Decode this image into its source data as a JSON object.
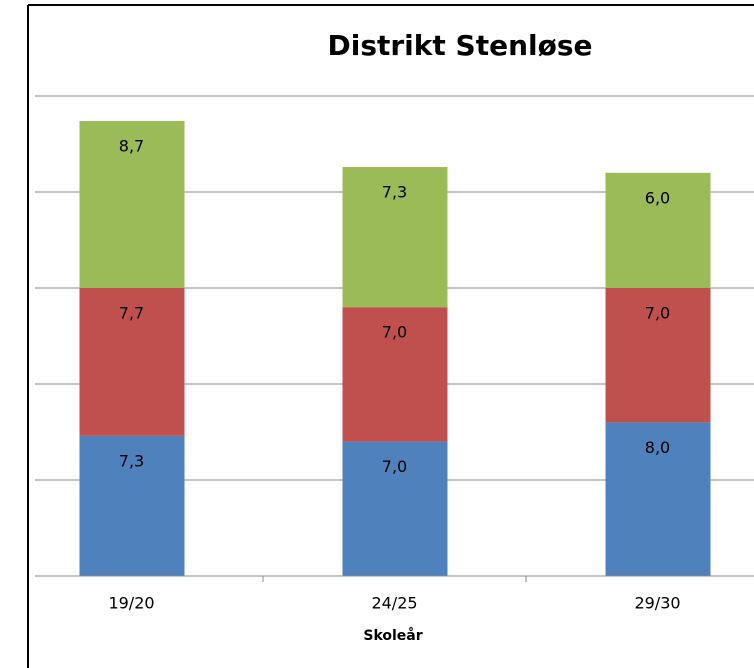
{
  "chart_data": {
    "type": "stacked_bar",
    "title": "Distrikt Stenløse",
    "x_label": "Skoleår",
    "categories": [
      "19/20",
      "24/25",
      "29/30"
    ],
    "series": [
      {
        "color": "#4f81bd",
        "values": [
          7.3,
          7.0,
          8.0
        ],
        "value_labels": [
          "7,3",
          "7,0",
          "8,0"
        ]
      },
      {
        "color": "#c0504d",
        "values": [
          7.7,
          7.0,
          7.0
        ],
        "value_labels": [
          "7,7",
          "7,0",
          "7,0"
        ]
      },
      {
        "color": "#9bbb59",
        "values": [
          8.7,
          7.3,
          6.0
        ],
        "value_labels": [
          "8,7",
          "7,3",
          "6,0"
        ]
      }
    ],
    "ylim": [
      0,
      25
    ],
    "yticks": [
      0,
      5,
      10,
      15,
      20,
      25
    ],
    "grid": true
  }
}
